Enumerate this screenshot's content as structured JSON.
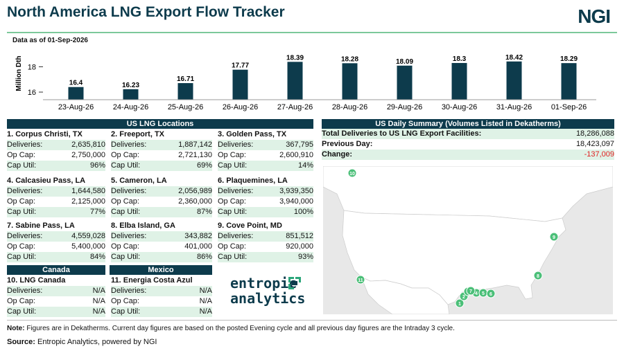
{
  "header": {
    "title": "North America LNG Export Flow Tracker",
    "logo": "NGI",
    "as_of": "Data as of 01-Sep-2026"
  },
  "chart_data": {
    "type": "bar",
    "ylabel": "Million Dth",
    "yticks": [
      16,
      18
    ],
    "ylim": [
      15.4,
      18.9
    ],
    "categories": [
      "23-Aug-26",
      "24-Aug-26",
      "25-Aug-26",
      "26-Aug-26",
      "27-Aug-26",
      "28-Aug-26",
      "29-Aug-26",
      "30-Aug-26",
      "31-Aug-26",
      "01-Sep-26"
    ],
    "values": [
      16.4,
      16.23,
      16.71,
      17.77,
      18.39,
      18.28,
      18.09,
      18.3,
      18.42,
      18.29
    ],
    "labels": [
      "16.4",
      "16.23",
      "16.71",
      "17.77",
      "18.39",
      "18.28",
      "18.09",
      "18.3",
      "18.42",
      "18.29"
    ],
    "bar_color": "#0d3b4c"
  },
  "us_locations": {
    "header": "US LNG Locations",
    "field_labels": {
      "deliveries": "Deliveries:",
      "op_cap": "Op Cap:",
      "cap_util": "Cap Util:"
    },
    "items": [
      {
        "name": "1. Corpus Christi, TX",
        "deliveries": "2,635,810",
        "op_cap": "2,750,000",
        "cap_util": "96%"
      },
      {
        "name": "2. Freeport, TX",
        "deliveries": "1,887,142",
        "op_cap": "2,721,130",
        "cap_util": "69%"
      },
      {
        "name": "3. Golden Pass, TX",
        "deliveries": "367,795",
        "op_cap": "2,600,910",
        "cap_util": "14%"
      },
      {
        "name": "4. Calcasieu Pass, LA",
        "deliveries": "1,644,580",
        "op_cap": "2,125,000",
        "cap_util": "77%"
      },
      {
        "name": "5. Cameron, LA",
        "deliveries": "2,056,989",
        "op_cap": "2,360,000",
        "cap_util": "87%"
      },
      {
        "name": "6. Plaquemines, LA",
        "deliveries": "3,939,350",
        "op_cap": "3,940,000",
        "cap_util": "100%"
      },
      {
        "name": "7. Sabine Pass, LA",
        "deliveries": "4,559,028",
        "op_cap": "5,400,000",
        "cap_util": "84%"
      },
      {
        "name": "8. Elba Island, GA",
        "deliveries": "343,882",
        "op_cap": "401,000",
        "cap_util": "86%"
      },
      {
        "name": "9. Cove Point, MD",
        "deliveries": "851,512",
        "op_cap": "920,000",
        "cap_util": "93%"
      }
    ]
  },
  "canada": {
    "header": "Canada",
    "name": "10. LNG Canada",
    "deliveries": "N/A",
    "op_cap": "N/A",
    "cap_util": "N/A"
  },
  "mexico": {
    "header": "Mexico",
    "name": "11. Energia Costa Azul",
    "deliveries": "N/A",
    "op_cap": "N/A",
    "cap_util": "N/A"
  },
  "summary": {
    "header": "US Daily Summary (Volumes Listed in Dekatherms)",
    "total_label": "Total Deliveries to US LNG Export Facilities:",
    "total_value": "18,286,088",
    "prev_label": "Previous Day:",
    "prev_value": "18,423,097",
    "change_label": "Change:",
    "change_value": "-137,009"
  },
  "map": {
    "markers": [
      "1",
      "2",
      "3",
      "4",
      "5",
      "6",
      "7",
      "8",
      "9",
      "10",
      "11"
    ],
    "marker_color": "#4bbf78",
    "land_color": "#ffffff",
    "water_color": "#e8e8e8"
  },
  "brand": {
    "line1": "entropic",
    "line2": "analytics."
  },
  "footer": {
    "note_label": "Note:",
    "note_text": " Figures are in Dekatherms.  Current day figures are based on the posted Evening cycle and all previous day figures are the Intraday 3 cycle.",
    "source_label": "Source:",
    "source_text": " Entropic Analytics, powered by NGI"
  }
}
